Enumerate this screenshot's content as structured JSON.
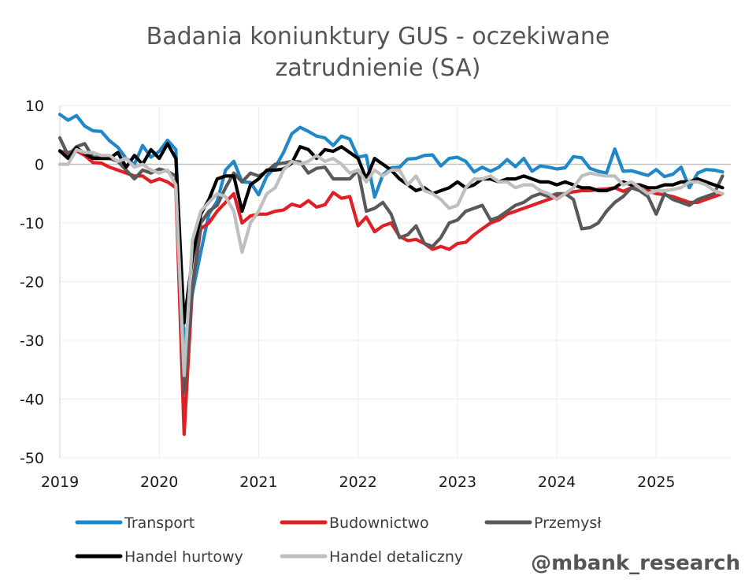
{
  "chart_data": {
    "type": "line",
    "title": [
      "Badania koniunktury GUS - oczekiwane",
      "zatrudnienie (SA)"
    ],
    "xlabel": "",
    "ylabel": "",
    "xlim": [
      2019.0,
      2025.75
    ],
    "ylim": [
      -50,
      10
    ],
    "y_ticks": [
      10,
      0,
      -10,
      -20,
      -30,
      -40,
      -50
    ],
    "x_ticks": [
      2019,
      2020,
      2021,
      2022,
      2023,
      2024,
      2025
    ],
    "x_tick_labels": [
      "2019",
      "2020",
      "2021",
      "2022",
      "2023",
      "2024",
      "2025"
    ],
    "grid": true,
    "legend": "bottom",
    "credit": "@mbank_research",
    "series": [
      {
        "name": "Transport",
        "color": "#1f88c9",
        "x": [
          2019.0,
          2019.083,
          2019.167,
          2019.25,
          2019.333,
          2019.417,
          2019.5,
          2019.583,
          2019.667,
          2019.75,
          2019.833,
          2019.917,
          2020.0,
          2020.083,
          2020.167,
          2020.25,
          2020.333,
          2020.417,
          2020.5,
          2020.583,
          2020.667,
          2020.75,
          2020.833,
          2020.917,
          2021.0,
          2021.083,
          2021.167,
          2021.25,
          2021.333,
          2021.417,
          2021.5,
          2021.583,
          2021.667,
          2021.75,
          2021.833,
          2021.917,
          2022.0,
          2022.083,
          2022.167,
          2022.25,
          2022.333,
          2022.417,
          2022.5,
          2022.583,
          2022.667,
          2022.75,
          2022.833,
          2022.917,
          2023.0,
          2023.083,
          2023.167,
          2023.25,
          2023.333,
          2023.417,
          2023.5,
          2023.583,
          2023.667,
          2023.75,
          2023.833,
          2023.917,
          2024.0,
          2024.083,
          2024.167,
          2024.25,
          2024.333,
          2024.417,
          2024.5,
          2024.583,
          2024.667,
          2024.75,
          2024.833,
          2024.917,
          2025.0,
          2025.083,
          2025.167,
          2025.25,
          2025.333,
          2025.417,
          2025.5,
          2025.583,
          2025.667
        ],
        "values": [
          8.5,
          7.5,
          8.3,
          6.5,
          5.7,
          5.6,
          4.0,
          2.9,
          1.0,
          0.0,
          3.2,
          1.2,
          2.2,
          4.1,
          2.5,
          -31.0,
          -22.0,
          -15.0,
          -8.5,
          -6.3,
          -1.0,
          0.5,
          -3.0,
          -3.1,
          -5.2,
          -2.0,
          -0.5,
          2.0,
          5.2,
          6.3,
          5.6,
          4.8,
          4.5,
          3.2,
          4.8,
          4.3,
          1.2,
          1.5,
          -5.6,
          -1.8,
          -0.6,
          -0.5,
          0.9,
          1.0,
          1.5,
          1.6,
          -0.3,
          1.0,
          1.2,
          0.5,
          -1.3,
          -0.5,
          -1.2,
          -0.5,
          0.8,
          -0.4,
          1.0,
          -1.2,
          -0.3,
          -0.5,
          -0.8,
          -0.6,
          1.3,
          1.1,
          -0.7,
          -1.2,
          -1.5,
          2.6,
          -1.2,
          -1.1,
          -1.5,
          -1.9,
          -0.9,
          -2.1,
          -1.7,
          -0.5,
          -4.0,
          -1.5,
          -0.9,
          -1.0,
          -1.3
        ]
      },
      {
        "name": "Budownictwo",
        "color": "#e02024",
        "x": [
          2019.0,
          2019.083,
          2019.167,
          2019.25,
          2019.333,
          2019.417,
          2019.5,
          2019.583,
          2019.667,
          2019.75,
          2019.833,
          2019.917,
          2020.0,
          2020.083,
          2020.167,
          2020.25,
          2020.333,
          2020.417,
          2020.5,
          2020.583,
          2020.667,
          2020.75,
          2020.833,
          2020.917,
          2021.0,
          2021.083,
          2021.167,
          2021.25,
          2021.333,
          2021.417,
          2021.5,
          2021.583,
          2021.667,
          2021.75,
          2021.833,
          2021.917,
          2022.0,
          2022.083,
          2022.167,
          2022.25,
          2022.333,
          2022.417,
          2022.5,
          2022.583,
          2022.667,
          2022.75,
          2022.833,
          2022.917,
          2023.0,
          2023.083,
          2023.167,
          2023.25,
          2023.333,
          2023.417,
          2023.5,
          2023.583,
          2023.667,
          2023.75,
          2023.833,
          2023.917,
          2024.0,
          2024.083,
          2024.167,
          2024.25,
          2024.333,
          2024.417,
          2024.5,
          2024.583,
          2024.667,
          2024.75,
          2024.833,
          2024.917,
          2025.0,
          2025.083,
          2025.167,
          2025.25,
          2025.333,
          2025.417,
          2025.5,
          2025.583,
          2025.667
        ],
        "values": [
          2.2,
          2.0,
          2.3,
          1.5,
          0.3,
          0.2,
          -0.5,
          -1.0,
          -1.5,
          -2.0,
          -2.0,
          -3.0,
          -2.5,
          -3.0,
          -4.0,
          -46.0,
          -21.0,
          -11.0,
          -10.0,
          -8.0,
          -6.5,
          -5.0,
          -10.0,
          -8.8,
          -8.5,
          -8.5,
          -8.0,
          -7.8,
          -6.8,
          -7.2,
          -6.2,
          -7.3,
          -6.9,
          -4.8,
          -5.8,
          -5.5,
          -10.5,
          -9.0,
          -11.5,
          -10.5,
          -10.0,
          -12.3,
          -13.0,
          -12.8,
          -13.5,
          -14.5,
          -14.0,
          -14.5,
          -13.5,
          -13.3,
          -12.0,
          -11.0,
          -10.0,
          -9.5,
          -8.5,
          -8.0,
          -7.5,
          -7.0,
          -6.5,
          -6.0,
          -5.5,
          -5.0,
          -4.7,
          -4.5,
          -4.5,
          -4.3,
          -4.2,
          -4.0,
          -4.6,
          -4.0,
          -4.3,
          -4.5,
          -5.0,
          -5.2,
          -5.5,
          -6.0,
          -6.5,
          -6.5,
          -6.0,
          -5.5,
          -5.0
        ]
      },
      {
        "name": "Przemysł",
        "color": "#595959",
        "x": [
          2019.0,
          2019.083,
          2019.167,
          2019.25,
          2019.333,
          2019.417,
          2019.5,
          2019.583,
          2019.667,
          2019.75,
          2019.833,
          2019.917,
          2020.0,
          2020.083,
          2020.167,
          2020.25,
          2020.333,
          2020.417,
          2020.5,
          2020.583,
          2020.667,
          2020.75,
          2020.833,
          2020.917,
          2021.0,
          2021.083,
          2021.167,
          2021.25,
          2021.333,
          2021.417,
          2021.5,
          2021.583,
          2021.667,
          2021.75,
          2021.833,
          2021.917,
          2022.0,
          2022.083,
          2022.167,
          2022.25,
          2022.333,
          2022.417,
          2022.5,
          2022.583,
          2022.667,
          2022.75,
          2022.833,
          2022.917,
          2023.0,
          2023.083,
          2023.167,
          2023.25,
          2023.333,
          2023.417,
          2023.5,
          2023.583,
          2023.667,
          2023.75,
          2023.833,
          2023.917,
          2024.0,
          2024.083,
          2024.167,
          2024.25,
          2024.333,
          2024.417,
          2024.5,
          2024.583,
          2024.667,
          2024.75,
          2024.833,
          2024.917,
          2025.0,
          2025.083,
          2025.167,
          2025.25,
          2025.333,
          2025.417,
          2025.5,
          2025.583,
          2025.667
        ],
        "values": [
          4.5,
          1.5,
          3.0,
          3.5,
          1.2,
          1.3,
          1.0,
          0.5,
          -1.0,
          -2.5,
          -1.0,
          -1.5,
          -0.8,
          -1.2,
          -2.0,
          -39.0,
          -21.0,
          -10.0,
          -8.0,
          -7.0,
          -4.0,
          -1.5,
          -3.0,
          -1.5,
          -2.0,
          -1.2,
          0.0,
          0.2,
          0.5,
          0.4,
          -1.5,
          -0.7,
          -0.5,
          -2.5,
          -2.5,
          -2.5,
          -1.0,
          -8.0,
          -7.5,
          -6.5,
          -8.5,
          -12.5,
          -12.0,
          -10.5,
          -13.5,
          -14.0,
          -12.5,
          -10.0,
          -9.5,
          -8.0,
          -7.5,
          -7.0,
          -9.5,
          -9.0,
          -8.0,
          -7.0,
          -6.5,
          -5.5,
          -5.0,
          -5.5,
          -5.0,
          -5.0,
          -6.0,
          -11.0,
          -10.8,
          -10.0,
          -8.0,
          -6.5,
          -5.5,
          -4.0,
          -4.5,
          -5.5,
          -8.5,
          -5.0,
          -6.0,
          -6.5,
          -7.0,
          -6.0,
          -5.5,
          -5.0,
          -2.0
        ]
      },
      {
        "name": "Handel hurtowy",
        "color": "#000000",
        "x": [
          2019.0,
          2019.083,
          2019.167,
          2019.25,
          2019.333,
          2019.417,
          2019.5,
          2019.583,
          2019.667,
          2019.75,
          2019.833,
          2019.917,
          2020.0,
          2020.083,
          2020.167,
          2020.25,
          2020.333,
          2020.417,
          2020.5,
          2020.583,
          2020.667,
          2020.75,
          2020.833,
          2020.917,
          2021.0,
          2021.083,
          2021.167,
          2021.25,
          2021.333,
          2021.417,
          2021.5,
          2021.583,
          2021.667,
          2021.75,
          2021.833,
          2021.917,
          2022.0,
          2022.083,
          2022.167,
          2022.25,
          2022.333,
          2022.417,
          2022.5,
          2022.583,
          2022.667,
          2022.75,
          2022.833,
          2022.917,
          2023.0,
          2023.083,
          2023.167,
          2023.25,
          2023.333,
          2023.417,
          2023.5,
          2023.583,
          2023.667,
          2023.75,
          2023.833,
          2023.917,
          2024.0,
          2024.083,
          2024.167,
          2024.25,
          2024.333,
          2024.417,
          2024.5,
          2024.583,
          2024.667,
          2024.75,
          2024.833,
          2024.917,
          2025.0,
          2025.083,
          2025.167,
          2025.25,
          2025.333,
          2025.417,
          2025.5,
          2025.583,
          2025.667
        ],
        "values": [
          2.3,
          1.0,
          2.8,
          1.8,
          1.0,
          1.0,
          1.0,
          2.0,
          -0.5,
          1.5,
          0.0,
          2.5,
          1.0,
          3.5,
          1.0,
          -27.0,
          -16.0,
          -8.5,
          -6.0,
          -2.5,
          -2.0,
          -2.0,
          -8.0,
          -3.5,
          -2.5,
          -1.0,
          -1.0,
          -0.8,
          0.2,
          3.0,
          2.5,
          1.0,
          2.5,
          2.2,
          3.0,
          2.0,
          1.0,
          -2.5,
          1.0,
          0.0,
          -1.0,
          -2.5,
          -3.5,
          -4.5,
          -4.0,
          -5.0,
          -4.5,
          -4.0,
          -3.0,
          -4.0,
          -3.5,
          -2.5,
          -2.5,
          -3.0,
          -2.5,
          -2.5,
          -2.0,
          -2.5,
          -3.0,
          -3.0,
          -3.5,
          -3.0,
          -3.5,
          -4.0,
          -4.0,
          -4.5,
          -4.5,
          -4.0,
          -3.0,
          -3.5,
          -3.5,
          -4.0,
          -4.0,
          -3.5,
          -3.5,
          -3.0,
          -3.0,
          -2.5,
          -3.0,
          -3.5,
          -4.0
        ]
      },
      {
        "name": "Handel detaliczny",
        "color": "#bfbfbf",
        "x": [
          2019.0,
          2019.083,
          2019.167,
          2019.25,
          2019.333,
          2019.417,
          2019.5,
          2019.583,
          2019.667,
          2019.75,
          2019.833,
          2019.917,
          2020.0,
          2020.083,
          2020.167,
          2020.25,
          2020.333,
          2020.417,
          2020.5,
          2020.583,
          2020.667,
          2020.75,
          2020.833,
          2020.917,
          2021.0,
          2021.083,
          2021.167,
          2021.25,
          2021.333,
          2021.417,
          2021.5,
          2021.583,
          2021.667,
          2021.75,
          2021.833,
          2021.917,
          2022.0,
          2022.083,
          2022.167,
          2022.25,
          2022.333,
          2022.417,
          2022.5,
          2022.583,
          2022.667,
          2022.75,
          2022.833,
          2022.917,
          2023.0,
          2023.083,
          2023.167,
          2023.25,
          2023.333,
          2023.417,
          2023.5,
          2023.583,
          2023.667,
          2023.75,
          2023.833,
          2023.917,
          2024.0,
          2024.083,
          2024.167,
          2024.25,
          2024.333,
          2024.417,
          2024.5,
          2024.583,
          2024.667,
          2024.75,
          2024.833,
          2024.917,
          2025.0,
          2025.083,
          2025.167,
          2025.25,
          2025.333,
          2025.417,
          2025.5,
          2025.583,
          2025.667
        ],
        "values": [
          0.0,
          0.0,
          2.5,
          2.0,
          2.0,
          1.5,
          1.5,
          0.5,
          1.0,
          -0.5,
          0.0,
          -1.0,
          -1.5,
          -1.0,
          -3.5,
          -36.0,
          -13.0,
          -8.0,
          -6.5,
          -5.0,
          -5.5,
          -8.0,
          -15.0,
          -10.0,
          -8.0,
          -5.0,
          -4.0,
          -1.0,
          0.5,
          0.0,
          0.5,
          1.5,
          0.5,
          1.0,
          0.0,
          -1.5,
          -1.0,
          -3.0,
          -1.0,
          -2.0,
          -1.0,
          -1.0,
          -3.5,
          -2.0,
          -4.5,
          -5.0,
          -6.0,
          -7.5,
          -7.0,
          -4.0,
          -2.5,
          -2.5,
          -2.0,
          -3.0,
          -3.0,
          -4.0,
          -3.5,
          -3.5,
          -4.5,
          -5.0,
          -6.0,
          -5.0,
          -4.0,
          -2.0,
          -1.5,
          -1.8,
          -2.0,
          -2.0,
          -3.5,
          -3.0,
          -4.0,
          -5.0,
          -4.5,
          -4.5,
          -4.3,
          -4.0,
          -3.0,
          -3.0,
          -3.5,
          -4.5,
          -5.0
        ]
      }
    ]
  }
}
